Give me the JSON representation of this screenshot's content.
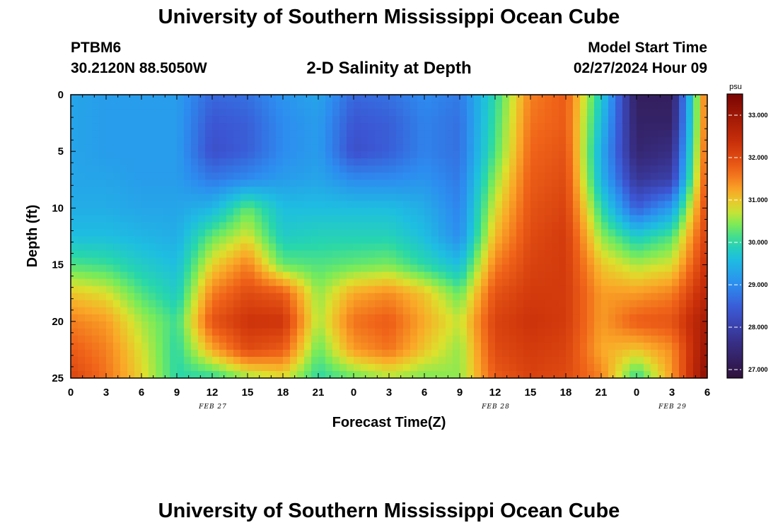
{
  "header": {
    "title": "University of Southern Mississippi Ocean Cube",
    "station": "PTBM6",
    "coords": "30.2120N  88.5050W",
    "plot_title": "2-D Salinity at Depth",
    "start_label": "Model Start Time",
    "start_value": "02/27/2024 Hour 09"
  },
  "footer": {
    "title": "University of Southern Mississippi Ocean Cube"
  },
  "chart_data": {
    "type": "heatmap",
    "title": "2-D Salinity at Depth",
    "xlabel": "Forecast Time(Z)",
    "ylabel": "Depth (ft)",
    "x_range_hours": [
      0,
      54
    ],
    "y_range_ft": [
      0,
      25
    ],
    "y_inverted": true,
    "x_ticks": [
      "0",
      "3",
      "6",
      "9",
      "12",
      "15",
      "18",
      "21",
      "0",
      "3",
      "6",
      "9",
      "12",
      "15",
      "18",
      "21",
      "0",
      "3",
      "6"
    ],
    "y_ticks": [
      "0",
      "5",
      "10",
      "15",
      "20",
      "25"
    ],
    "day_labels": [
      {
        "text": "FEB 27",
        "hour": 12
      },
      {
        "text": "FEB 28",
        "hour": 36
      },
      {
        "text": "FEB 29",
        "hour": 51
      }
    ],
    "colorbar": {
      "unit": "psu",
      "min": 26.8,
      "max": 33.5,
      "ticks": [
        "27.000",
        "28.000",
        "29.000",
        "30.000",
        "31.000",
        "32.000",
        "33.000"
      ]
    },
    "depth_levels_ft": [
      0,
      2.5,
      5,
      7.5,
      10,
      12.5,
      15,
      17.5,
      20,
      22.5,
      25
    ],
    "time_hours": [
      0,
      3,
      6,
      9,
      12,
      15,
      18,
      21,
      24,
      27,
      30,
      33,
      36,
      39,
      42,
      45,
      48,
      51,
      54
    ],
    "salinity_psu": [
      [
        29.3,
        29.2,
        29.2,
        29.2,
        28.6,
        28.7,
        29.1,
        29.3,
        28.6,
        28.7,
        29.0,
        28.8,
        30.0,
        31.5,
        31.8,
        29.8,
        27.2,
        27.2,
        31.8
      ],
      [
        29.3,
        29.2,
        29.2,
        29.2,
        28.4,
        28.5,
        29.0,
        29.2,
        28.4,
        28.5,
        28.9,
        28.7,
        30.1,
        31.6,
        31.8,
        29.6,
        27.3,
        27.3,
        31.8
      ],
      [
        29.3,
        29.2,
        29.2,
        29.2,
        28.3,
        28.5,
        29.0,
        29.2,
        28.3,
        28.5,
        28.9,
        28.7,
        30.2,
        31.7,
        31.9,
        29.4,
        27.4,
        27.6,
        31.9
      ],
      [
        29.3,
        29.3,
        29.2,
        29.2,
        28.8,
        29.0,
        29.2,
        29.3,
        29.0,
        29.0,
        29.1,
        28.8,
        30.5,
        31.8,
        32.0,
        29.5,
        27.8,
        28.0,
        32.0
      ],
      [
        29.4,
        29.4,
        29.3,
        29.3,
        29.5,
        30.3,
        29.6,
        29.6,
        29.6,
        29.6,
        29.4,
        28.9,
        30.8,
        31.9,
        32.1,
        30.0,
        28.5,
        29.2,
        32.1
      ],
      [
        29.6,
        29.6,
        29.5,
        29.4,
        30.3,
        30.8,
        29.8,
        29.9,
        29.9,
        29.9,
        29.6,
        29.0,
        31.1,
        32.0,
        32.2,
        30.5,
        29.8,
        30.2,
        32.2
      ],
      [
        30.2,
        30.1,
        29.8,
        29.6,
        30.9,
        31.5,
        30.3,
        30.2,
        30.3,
        30.4,
        30.0,
        29.6,
        31.5,
        32.1,
        32.2,
        31.0,
        30.6,
        30.8,
        32.4
      ],
      [
        31.0,
        30.8,
        30.2,
        29.8,
        31.5,
        32.0,
        31.8,
        30.5,
        31.2,
        31.4,
        31.0,
        30.3,
        31.9,
        32.2,
        32.2,
        31.3,
        31.3,
        31.5,
        32.6
      ],
      [
        31.5,
        31.3,
        30.6,
        30.1,
        31.9,
        32.3,
        32.3,
        30.6,
        31.6,
        31.8,
        31.2,
        30.7,
        32.1,
        32.3,
        32.2,
        31.3,
        31.8,
        31.9,
        32.9
      ],
      [
        31.8,
        31.5,
        30.8,
        30.0,
        31.2,
        32.0,
        31.8,
        30.3,
        31.3,
        31.6,
        31.0,
        30.5,
        32.0,
        32.2,
        32.1,
        31.2,
        31.0,
        31.4,
        33.1
      ],
      [
        32.1,
        31.6,
        30.9,
        30.0,
        30.0,
        30.5,
        30.8,
        30.0,
        30.3,
        30.6,
        30.4,
        30.5,
        31.8,
        32.1,
        32.0,
        31.5,
        30.0,
        31.3,
        33.3
      ]
    ]
  }
}
